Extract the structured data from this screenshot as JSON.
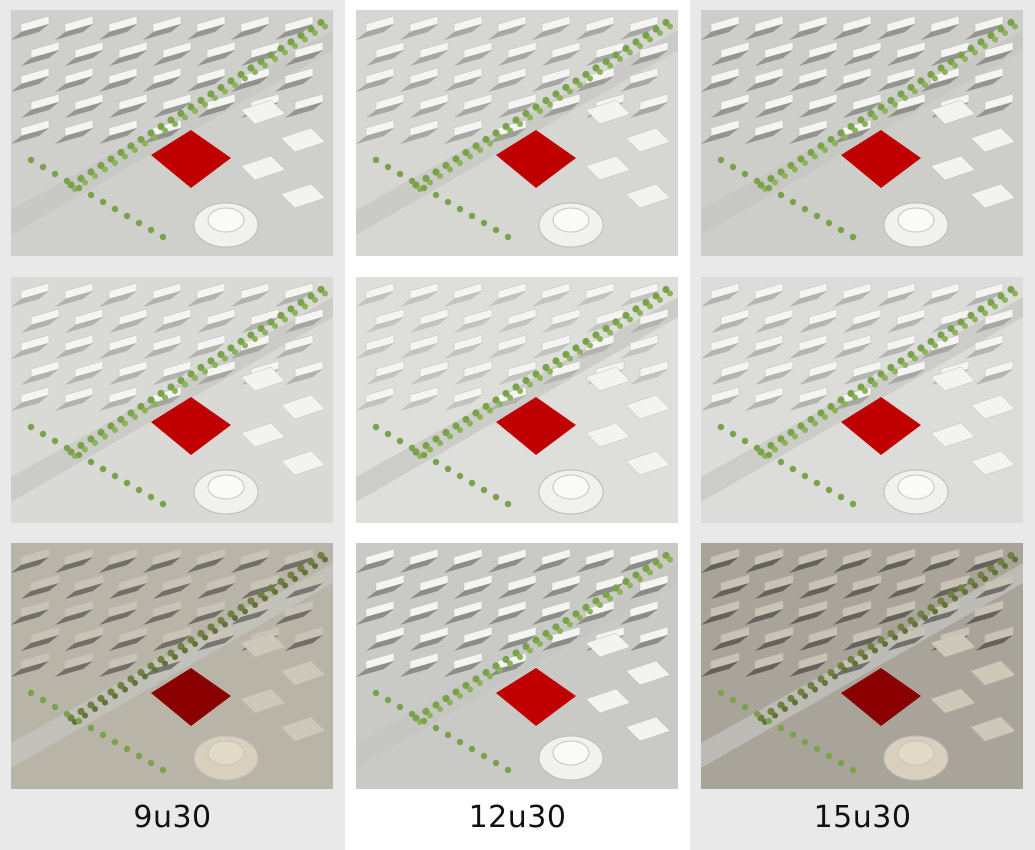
{
  "columns": [
    {
      "label": "9u30"
    },
    {
      "label": "12u30"
    },
    {
      "label": "15u30"
    }
  ],
  "rows": [
    "top",
    "middle",
    "bottom"
  ],
  "colors": {
    "site_highlight": "#c00000",
    "trees": "#7aa24a",
    "ground": "#d9d9d6",
    "buildings": "#f2f2f0"
  }
}
